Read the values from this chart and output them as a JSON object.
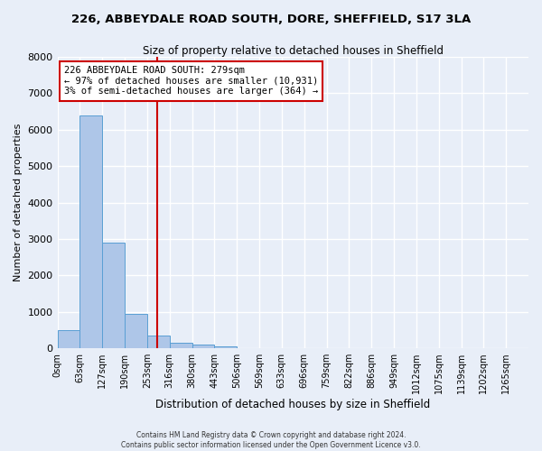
{
  "title": "226, ABBEYDALE ROAD SOUTH, DORE, SHEFFIELD, S17 3LA",
  "subtitle": "Size of property relative to detached houses in Sheffield",
  "xlabel": "Distribution of detached houses by size in Sheffield",
  "ylabel": "Number of detached properties",
  "bar_color": "#aec6e8",
  "bar_edge_color": "#5a9fd4",
  "background_color": "#e8eef8",
  "grid_color": "#ffffff",
  "categories": [
    "0sqm",
    "63sqm",
    "127sqm",
    "190sqm",
    "253sqm",
    "316sqm",
    "380sqm",
    "443sqm",
    "506sqm",
    "569sqm",
    "633sqm",
    "696sqm",
    "759sqm",
    "822sqm",
    "886sqm",
    "949sqm",
    "1012sqm",
    "1075sqm",
    "1139sqm",
    "1202sqm",
    "1265sqm"
  ],
  "bar_heights": [
    500,
    6400,
    2900,
    950,
    350,
    150,
    100,
    50,
    0,
    0,
    0,
    0,
    0,
    0,
    0,
    0,
    0,
    0,
    0,
    0,
    0
  ],
  "bin_width": 63,
  "property_size": 279,
  "annotation_text": "226 ABBEYDALE ROAD SOUTH: 279sqm\n← 97% of detached houses are smaller (10,931)\n3% of semi-detached houses are larger (364) →",
  "annotation_box_color": "#ffffff",
  "annotation_box_edge": "#cc0000",
  "red_line_color": "#cc0000",
  "ylim": [
    0,
    8000
  ],
  "yticks": [
    0,
    1000,
    2000,
    3000,
    4000,
    5000,
    6000,
    7000,
    8000
  ],
  "footer_line1": "Contains HM Land Registry data © Crown copyright and database right 2024.",
  "footer_line2": "Contains public sector information licensed under the Open Government Licence v3.0."
}
